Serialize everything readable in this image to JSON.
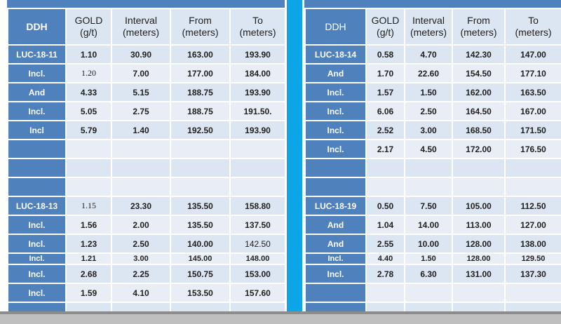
{
  "headers": [
    "DDH",
    "GOLD\n(g/t)",
    "Interval\n(meters)",
    "From\n(meters)",
    "To\n(meters)"
  ],
  "left_table": {
    "rows": [
      [
        "LUC-18-11",
        "1.10",
        "30.90",
        "163.00",
        "193.90"
      ],
      [
        "Incl.",
        "1.20",
        "7.00",
        "177.00",
        "184.00"
      ],
      [
        "And",
        "4.33",
        "5.15",
        "188.75",
        "193.90"
      ],
      [
        "Incl.",
        "5.05",
        "2.75",
        "188.75",
        "191.50."
      ],
      [
        "Incl",
        "5.79",
        "1.40",
        "192.50",
        "193.90"
      ],
      [
        "",
        "",
        "",
        "",
        ""
      ],
      [
        "",
        "",
        "",
        "",
        ""
      ],
      [
        "",
        "",
        "",
        "",
        ""
      ],
      [
        "LUC-18-13",
        "1.15",
        "23.30",
        "135.50",
        "158.80"
      ],
      [
        "Incl.",
        "1.56",
        "2.00",
        "135.50",
        "137.50"
      ],
      [
        "Incl.",
        "1.23",
        "2.50",
        "140.00",
        "142.50"
      ],
      [
        "Incl.",
        "1.21",
        "3.00",
        "145.00",
        "148.00"
      ],
      [
        "Incl.",
        "2.68",
        "2.25",
        "150.75",
        "153.00"
      ],
      [
        "Incl.",
        "1.59",
        "4.10",
        "153.50",
        "157.60"
      ],
      [
        "",
        "",
        "",
        "",
        ""
      ]
    ]
  },
  "right_table": {
    "rows": [
      [
        "LUC-18-14",
        "0.58",
        "4.70",
        "142.30",
        "147.00"
      ],
      [
        "And",
        "1.70",
        "22.60",
        "154.50",
        "177.10"
      ],
      [
        "Incl.",
        "1.57",
        "1.50",
        "162.00",
        "163.50"
      ],
      [
        "Incl.",
        "6.06",
        "2.50",
        "164.50",
        "167.00"
      ],
      [
        "Incl.",
        "2.52",
        "3.00",
        "168.50",
        "171.50"
      ],
      [
        "Incl.",
        "2.17",
        "4.50",
        "172.00",
        "176.50"
      ],
      [
        "",
        "",
        "",
        "",
        ""
      ],
      [
        "",
        "",
        "",
        "",
        ""
      ],
      [
        "LUC-18-19",
        "0.50",
        "7.50",
        "105.00",
        "112.50"
      ],
      [
        "And",
        "1.04",
        "14.00",
        "113.00",
        "127.00"
      ],
      [
        "And",
        "2.55",
        "10.00",
        "128.00",
        "138.00"
      ],
      [
        "Incl.",
        "4.40",
        "1.50",
        "128.00",
        "129.50"
      ],
      [
        "Incl.",
        "2.78",
        "6.30",
        "131.00",
        "137.30"
      ],
      [
        "",
        "",
        "",
        "",
        ""
      ],
      [
        "",
        "",
        "",
        "",
        ""
      ]
    ]
  },
  "colors": {
    "ddh_blue": "#4f81bd",
    "row_light": "#dce6f2",
    "row_lighter": "#e9eef6",
    "divider": "#0ba5e8"
  }
}
